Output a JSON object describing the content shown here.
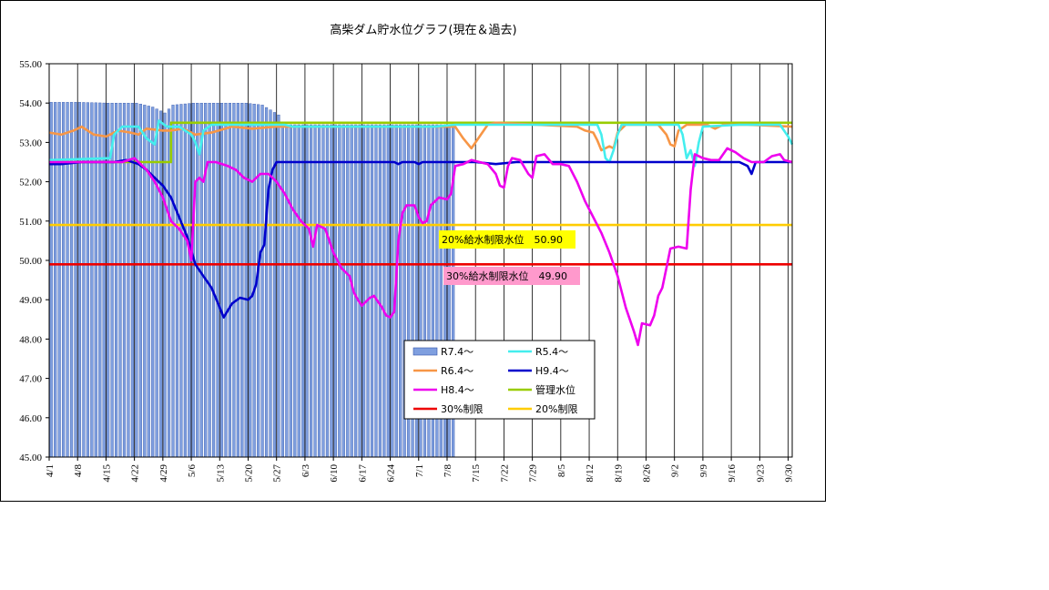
{
  "chart_data": {
    "type": "line",
    "title": "高柴ダム貯水位グラフ(現在＆過去)",
    "ylim": [
      45.0,
      55.0
    ],
    "y_ticks": [
      "45.00",
      "46.00",
      "47.00",
      "48.00",
      "49.00",
      "50.00",
      "51.00",
      "52.00",
      "53.00",
      "54.00",
      "55.00"
    ],
    "x_ticks": [
      "4/1",
      "4/8",
      "4/15",
      "4/22",
      "4/29",
      "5/6",
      "5/13",
      "5/20",
      "5/27",
      "6/3",
      "6/10",
      "6/17",
      "6/24",
      "7/1",
      "7/8",
      "7/15",
      "7/22",
      "7/29",
      "8/5",
      "8/12",
      "8/19",
      "8/26",
      "9/2",
      "9/9",
      "9/16",
      "9/23",
      "9/30"
    ],
    "x_days_total": 183,
    "grid": "vertical",
    "legend_position": "center-bottom",
    "bars": {
      "name": "R7.4～",
      "color": "#7f9fdf",
      "points": [
        [
          0,
          54.02
        ],
        [
          7,
          54.02
        ],
        [
          14,
          54.0
        ],
        [
          21,
          54.0
        ],
        [
          25,
          53.9
        ],
        [
          28,
          53.75
        ],
        [
          30,
          53.95
        ],
        [
          35,
          54.0
        ],
        [
          48,
          54.0
        ],
        [
          52,
          53.95
        ],
        [
          56,
          53.7
        ],
        [
          57,
          53.45
        ],
        [
          99,
          53.45
        ]
      ]
    },
    "series": [
      {
        "name": "R5.4～",
        "color": "#44eeee",
        "points": [
          [
            0,
            52.55
          ],
          [
            15,
            52.6
          ],
          [
            16,
            53.2
          ],
          [
            18,
            53.4
          ],
          [
            22,
            53.4
          ],
          [
            24,
            53.1
          ],
          [
            26,
            52.95
          ],
          [
            27,
            53.55
          ],
          [
            29,
            53.4
          ],
          [
            32,
            53.4
          ],
          [
            35,
            53.2
          ],
          [
            36,
            53.0
          ],
          [
            37,
            52.7
          ],
          [
            38,
            53.3
          ],
          [
            40,
            53.45
          ],
          [
            58,
            53.45
          ],
          [
            60,
            53.4
          ],
          [
            70,
            53.4
          ],
          [
            80,
            53.4
          ],
          [
            90,
            53.4
          ],
          [
            95,
            53.4
          ],
          [
            100,
            53.45
          ],
          [
            110,
            53.45
          ],
          [
            120,
            53.45
          ],
          [
            130,
            53.45
          ],
          [
            135,
            53.45
          ],
          [
            136,
            53.2
          ],
          [
            137,
            52.6
          ],
          [
            138,
            52.5
          ],
          [
            139,
            52.8
          ],
          [
            140,
            53.2
          ],
          [
            141,
            53.45
          ],
          [
            155,
            53.45
          ],
          [
            156,
            53.2
          ],
          [
            157,
            52.6
          ],
          [
            158,
            52.8
          ],
          [
            159,
            52.4
          ],
          [
            160,
            53.0
          ],
          [
            161,
            53.4
          ],
          [
            170,
            53.45
          ],
          [
            180,
            53.45
          ],
          [
            182,
            53.15
          ],
          [
            183,
            52.95
          ]
        ]
      },
      {
        "name": "R6.4～",
        "color": "#f79646",
        "points": [
          [
            0,
            53.25
          ],
          [
            3,
            53.2
          ],
          [
            6,
            53.3
          ],
          [
            8,
            53.4
          ],
          [
            11,
            53.2
          ],
          [
            14,
            53.15
          ],
          [
            17,
            53.3
          ],
          [
            20,
            53.25
          ],
          [
            22,
            53.2
          ],
          [
            24,
            53.35
          ],
          [
            28,
            53.3
          ],
          [
            30,
            53.3
          ],
          [
            33,
            53.35
          ],
          [
            36,
            53.2
          ],
          [
            40,
            53.25
          ],
          [
            45,
            53.4
          ],
          [
            50,
            53.35
          ],
          [
            56,
            53.4
          ],
          [
            60,
            53.4
          ],
          [
            70,
            53.4
          ],
          [
            80,
            53.4
          ],
          [
            90,
            53.4
          ],
          [
            100,
            53.4
          ],
          [
            102,
            53.1
          ],
          [
            104,
            52.85
          ],
          [
            106,
            53.15
          ],
          [
            108,
            53.45
          ],
          [
            110,
            53.5
          ],
          [
            120,
            53.45
          ],
          [
            130,
            53.4
          ],
          [
            132,
            53.3
          ],
          [
            134,
            53.25
          ],
          [
            135,
            53.05
          ],
          [
            136,
            52.8
          ],
          [
            138,
            52.9
          ],
          [
            139,
            52.85
          ],
          [
            140,
            53.25
          ],
          [
            142,
            53.45
          ],
          [
            150,
            53.45
          ],
          [
            152,
            53.2
          ],
          [
            153,
            52.95
          ],
          [
            154,
            52.9
          ],
          [
            155,
            53.3
          ],
          [
            157,
            53.45
          ],
          [
            160,
            53.45
          ],
          [
            162,
            53.45
          ],
          [
            164,
            53.35
          ],
          [
            166,
            53.45
          ],
          [
            172,
            53.45
          ],
          [
            183,
            53.4
          ]
        ]
      },
      {
        "name": "H9.4～",
        "color": "#0000cc",
        "points": [
          [
            0,
            52.45
          ],
          [
            3,
            52.45
          ],
          [
            8,
            52.5
          ],
          [
            16,
            52.5
          ],
          [
            19,
            52.55
          ],
          [
            22,
            52.45
          ],
          [
            24,
            52.3
          ],
          [
            26,
            52.1
          ],
          [
            28,
            51.9
          ],
          [
            30,
            51.6
          ],
          [
            32,
            51.1
          ],
          [
            34,
            50.6
          ],
          [
            36,
            49.9
          ],
          [
            38,
            49.6
          ],
          [
            40,
            49.3
          ],
          [
            42,
            48.8
          ],
          [
            43,
            48.55
          ],
          [
            45,
            48.9
          ],
          [
            47,
            49.05
          ],
          [
            49,
            49.0
          ],
          [
            50,
            49.1
          ],
          [
            51,
            49.4
          ],
          [
            52,
            50.2
          ],
          [
            53,
            50.4
          ],
          [
            54,
            51.8
          ],
          [
            55,
            52.3
          ],
          [
            56,
            52.5
          ],
          [
            70,
            52.5
          ],
          [
            80,
            52.5
          ],
          [
            85,
            52.5
          ],
          [
            86,
            52.45
          ],
          [
            87,
            52.5
          ],
          [
            90,
            52.5
          ],
          [
            91,
            52.45
          ],
          [
            92,
            52.5
          ],
          [
            105,
            52.5
          ],
          [
            110,
            52.45
          ],
          [
            115,
            52.5
          ],
          [
            130,
            52.5
          ],
          [
            150,
            52.5
          ],
          [
            170,
            52.5
          ],
          [
            172,
            52.4
          ],
          [
            173,
            52.2
          ],
          [
            174,
            52.5
          ],
          [
            183,
            52.5
          ]
        ]
      },
      {
        "name": "H8.4～",
        "color": "#ee00ee",
        "points": [
          [
            0,
            52.5
          ],
          [
            10,
            52.5
          ],
          [
            18,
            52.5
          ],
          [
            21,
            52.6
          ],
          [
            24,
            52.3
          ],
          [
            26,
            52.0
          ],
          [
            28,
            51.6
          ],
          [
            30,
            51.0
          ],
          [
            32,
            50.8
          ],
          [
            34,
            50.5
          ],
          [
            35,
            50.0
          ],
          [
            36,
            52.0
          ],
          [
            37,
            52.1
          ],
          [
            38,
            52.0
          ],
          [
            39,
            52.5
          ],
          [
            41,
            52.5
          ],
          [
            44,
            52.4
          ],
          [
            46,
            52.3
          ],
          [
            48,
            52.1
          ],
          [
            50,
            52.0
          ],
          [
            52,
            52.2
          ],
          [
            54,
            52.2
          ],
          [
            56,
            52.0
          ],
          [
            58,
            51.7
          ],
          [
            60,
            51.3
          ],
          [
            62,
            51.0
          ],
          [
            64,
            50.8
          ],
          [
            65,
            50.35
          ],
          [
            66,
            50.9
          ],
          [
            68,
            50.8
          ],
          [
            70,
            50.2
          ],
          [
            72,
            49.8
          ],
          [
            74,
            49.6
          ],
          [
            75,
            49.2
          ],
          [
            76,
            49.0
          ],
          [
            77,
            48.85
          ],
          [
            79,
            49.05
          ],
          [
            80,
            49.1
          ],
          [
            82,
            48.8
          ],
          [
            83,
            48.6
          ],
          [
            84,
            48.55
          ],
          [
            85,
            48.7
          ],
          [
            86,
            50.5
          ],
          [
            87,
            51.2
          ],
          [
            88,
            51.4
          ],
          [
            90,
            51.4
          ],
          [
            91,
            51.1
          ],
          [
            92,
            50.95
          ],
          [
            93,
            51.0
          ],
          [
            94,
            51.4
          ],
          [
            96,
            51.6
          ],
          [
            98,
            51.55
          ],
          [
            99,
            51.7
          ],
          [
            100,
            52.4
          ],
          [
            102,
            52.45
          ],
          [
            104,
            52.55
          ],
          [
            106,
            52.5
          ],
          [
            108,
            52.45
          ],
          [
            110,
            52.2
          ],
          [
            111,
            51.9
          ],
          [
            112,
            51.85
          ],
          [
            113,
            52.4
          ],
          [
            114,
            52.6
          ],
          [
            116,
            52.55
          ],
          [
            118,
            52.2
          ],
          [
            119,
            52.1
          ],
          [
            120,
            52.65
          ],
          [
            122,
            52.7
          ],
          [
            124,
            52.45
          ],
          [
            126,
            52.45
          ],
          [
            128,
            52.4
          ],
          [
            130,
            52.0
          ],
          [
            132,
            51.5
          ],
          [
            134,
            51.1
          ],
          [
            136,
            50.7
          ],
          [
            138,
            50.2
          ],
          [
            140,
            49.6
          ],
          [
            142,
            48.8
          ],
          [
            144,
            48.2
          ],
          [
            145,
            47.85
          ],
          [
            146,
            48.4
          ],
          [
            148,
            48.35
          ],
          [
            149,
            48.6
          ],
          [
            150,
            49.1
          ],
          [
            151,
            49.3
          ],
          [
            152,
            49.8
          ],
          [
            153,
            50.3
          ],
          [
            155,
            50.35
          ],
          [
            157,
            50.3
          ],
          [
            158,
            51.8
          ],
          [
            159,
            52.7
          ],
          [
            161,
            52.6
          ],
          [
            163,
            52.55
          ],
          [
            165,
            52.55
          ],
          [
            167,
            52.85
          ],
          [
            169,
            52.75
          ],
          [
            171,
            52.6
          ],
          [
            173,
            52.5
          ],
          [
            176,
            52.5
          ],
          [
            178,
            52.65
          ],
          [
            180,
            52.7
          ],
          [
            181,
            52.55
          ],
          [
            183,
            52.5
          ]
        ]
      },
      {
        "name": "管理水位",
        "color": "#99cc00",
        "points": [
          [
            0,
            52.5
          ],
          [
            30,
            52.5
          ],
          [
            30,
            53.5
          ],
          [
            183,
            53.5
          ]
        ]
      },
      {
        "name": "30%制限",
        "color": "#ee0000",
        "points": [
          [
            0,
            49.9
          ],
          [
            183,
            49.9
          ]
        ]
      },
      {
        "name": "20%制限",
        "color": "#ffcc00",
        "points": [
          [
            0,
            50.9
          ],
          [
            183,
            50.9
          ]
        ]
      }
    ],
    "annotations": [
      {
        "text": "20%給水制限水位　50.90",
        "bg": "#ffff00"
      },
      {
        "text": "30%給水制限水位　49.90",
        "bg": "#ff99cc"
      }
    ],
    "legend": [
      {
        "label": "R7.4～",
        "kind": "bar",
        "color": "#7f9fdf"
      },
      {
        "label": "R5.4～",
        "kind": "line",
        "color": "#44eeee"
      },
      {
        "label": "R6.4～",
        "kind": "line",
        "color": "#f79646"
      },
      {
        "label": "H9.4～",
        "kind": "line",
        "color": "#0000cc"
      },
      {
        "label": "H8.4～",
        "kind": "line",
        "color": "#ee00ee"
      },
      {
        "label": "管理水位",
        "kind": "line",
        "color": "#99cc00"
      },
      {
        "label": "30%制限",
        "kind": "line",
        "color": "#ee0000"
      },
      {
        "label": "20%制限",
        "kind": "line",
        "color": "#ffcc00"
      }
    ]
  }
}
